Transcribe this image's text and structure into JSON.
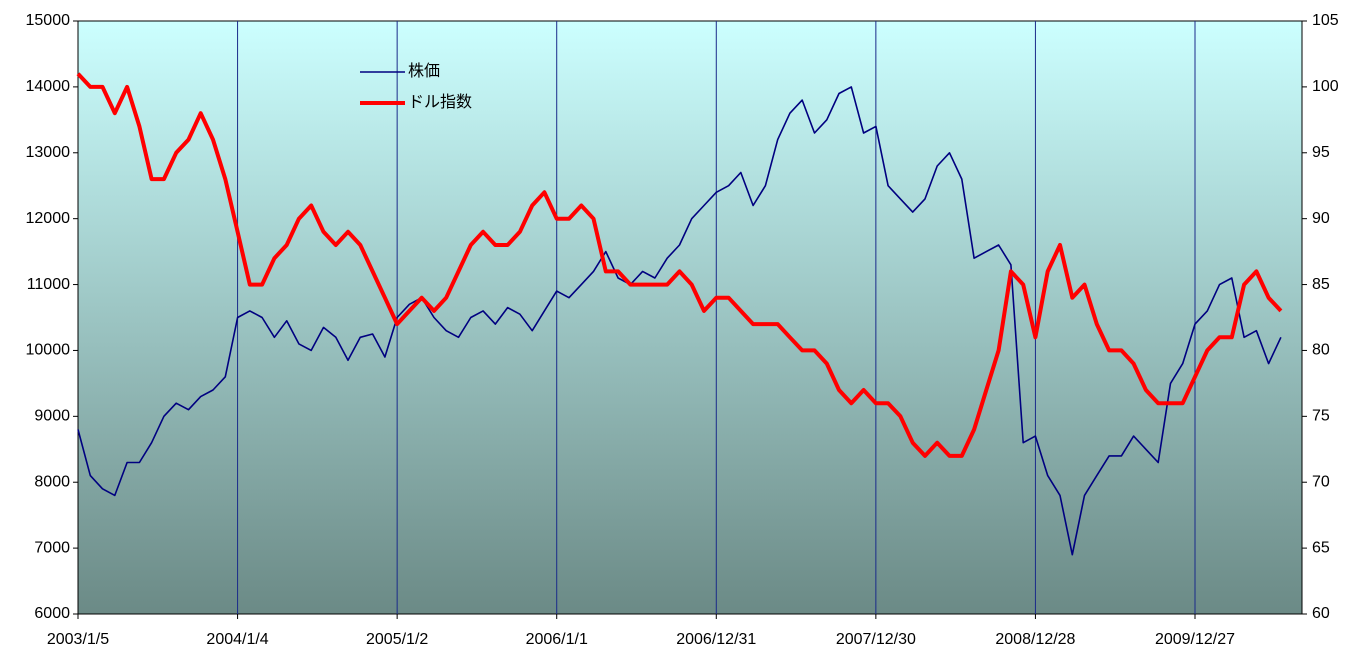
{
  "chart_data": {
    "type": "line",
    "categories": [
      "2003/1/5",
      null,
      null,
      null,
      null,
      null,
      null,
      null,
      null,
      null,
      null,
      null,
      null,
      "2004/1/4",
      null,
      null,
      null,
      null,
      null,
      null,
      null,
      null,
      null,
      null,
      null,
      null,
      "2005/1/2",
      null,
      null,
      null,
      null,
      null,
      null,
      null,
      null,
      null,
      null,
      null,
      null,
      "2006/1/1",
      null,
      null,
      null,
      null,
      null,
      null,
      null,
      null,
      null,
      null,
      null,
      null,
      "2006/12/31",
      null,
      null,
      null,
      null,
      null,
      null,
      null,
      null,
      null,
      null,
      null,
      null,
      "2007/12/30",
      null,
      null,
      null,
      null,
      null,
      null,
      null,
      null,
      null,
      null,
      null,
      null,
      "2008/12/28",
      null,
      null,
      null,
      null,
      null,
      null,
      null,
      null,
      null,
      null,
      null,
      null,
      "2009/12/27",
      null,
      null,
      null,
      null,
      null,
      null,
      null
    ],
    "series": [
      {
        "name": "株価",
        "color": "#000080",
        "values": [
          8800,
          8100,
          7900,
          7800,
          8300,
          8300,
          8600,
          9000,
          9200,
          9100,
          9300,
          9400,
          9600,
          10500,
          10600,
          10500,
          10200,
          10450,
          10100,
          10000,
          10350,
          10200,
          9850,
          10200,
          10250,
          9900,
          10500,
          10700,
          10800,
          10500,
          10300,
          10200,
          10500,
          10600,
          10400,
          10650,
          10550,
          10300,
          10600,
          10900,
          10800,
          11000,
          11200,
          11500,
          11100,
          11000,
          11200,
          11100,
          11400,
          11600,
          12000,
          12200,
          12400,
          12500,
          12700,
          12200,
          12500,
          13200,
          13600,
          13800,
          13300,
          13500,
          13900,
          14000,
          13300,
          13400,
          12500,
          12300,
          12100,
          12300,
          12800,
          13000,
          12600,
          11400,
          11500,
          11600,
          11300,
          8600,
          8700,
          8100,
          7800,
          6900,
          7800,
          8100,
          8400,
          8400,
          8700,
          8500,
          8300,
          9500,
          9800,
          10400,
          10600,
          11000,
          11100,
          10200,
          10300,
          9800,
          10200
        ]
      },
      {
        "name": "ドル指数",
        "color": "#ff0000",
        "axis": "y2",
        "values": [
          101,
          100,
          100,
          98,
          100,
          97,
          93,
          93,
          95,
          96,
          98,
          96,
          93,
          89,
          85,
          85,
          87,
          88,
          90,
          91,
          89,
          88,
          89,
          88,
          86,
          84,
          82,
          83,
          84,
          83,
          84,
          86,
          88,
          89,
          88,
          88,
          89,
          91,
          92,
          90,
          90,
          91,
          90,
          86,
          86,
          85,
          85,
          85,
          85,
          86,
          85,
          83,
          84,
          84,
          83,
          82,
          82,
          82,
          81,
          80,
          80,
          79,
          77,
          76,
          77,
          76,
          76,
          75,
          73,
          72,
          73,
          72,
          72,
          74,
          77,
          80,
          86,
          85,
          81,
          86,
          88,
          84,
          85,
          82,
          80,
          80,
          79,
          77,
          76,
          76,
          76,
          78,
          80,
          81,
          81,
          85,
          86,
          84,
          83
        ]
      }
    ],
    "ylim": [
      6000,
      15000
    ],
    "yticks": [
      6000,
      7000,
      8000,
      9000,
      10000,
      11000,
      12000,
      13000,
      14000,
      15000
    ],
    "y2lim": [
      60,
      105
    ],
    "y2ticks": [
      60,
      65,
      70,
      75,
      80,
      85,
      90,
      95,
      100,
      105
    ],
    "grid": true
  }
}
